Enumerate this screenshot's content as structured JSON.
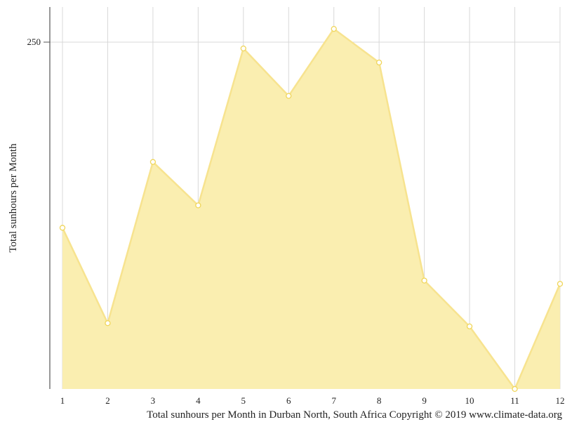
{
  "chart_data": {
    "type": "area",
    "categories": [
      "1",
      "2",
      "3",
      "4",
      "5",
      "6",
      "7",
      "8",
      "9",
      "10",
      "11",
      "12"
    ],
    "series": [
      {
        "values": [
          158.9,
          112.1,
          191.2,
          169.9,
          246.9,
          223.6,
          256.5,
          240.0,
          133.0,
          110.5,
          79.8,
          131.4
        ]
      }
    ],
    "ylabel": "Total sunhours per Month",
    "xlabel": "",
    "yticks": [
      250
    ],
    "grid": true,
    "colors": {
      "fill": "#faeeb0",
      "line": "#f7e38f",
      "marker_stroke": "#f0d65a",
      "grid": "#d8d8d8",
      "axis": "#555555"
    }
  },
  "caption": "Total sunhours per Month in Durban North, South Africa Copyright © 2019 www.climate-data.org"
}
